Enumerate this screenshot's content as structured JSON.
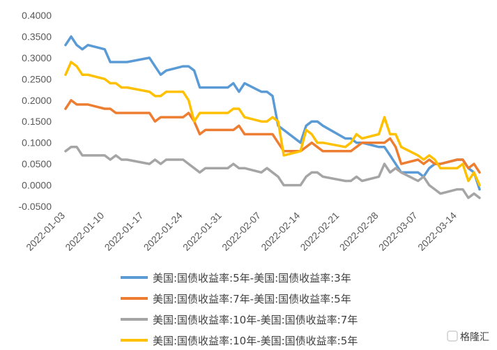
{
  "chart_data": {
    "type": "line",
    "title": "",
    "xlabel": "",
    "ylabel": "",
    "ylim": [
      -0.05,
      0.4
    ],
    "yticks": [
      "0.4000",
      "0.3500",
      "0.3000",
      "0.2500",
      "0.2000",
      "0.1500",
      "0.1000",
      "0.0500",
      "0.0000",
      "-0.0500"
    ],
    "xticks": [
      "2022-01-03",
      "2022-01-10",
      "2022-01-17",
      "2022-01-24",
      "2022-01-31",
      "2022-02-07",
      "2022-02-14",
      "2022-02-21",
      "2022-02-28",
      "2022-03-07",
      "2022-03-14"
    ],
    "grid": false,
    "legend_position": "bottom",
    "x": [
      "2022-01-03",
      "2022-01-04",
      "2022-01-05",
      "2022-01-06",
      "2022-01-07",
      "2022-01-10",
      "2022-01-11",
      "2022-01-12",
      "2022-01-13",
      "2022-01-14",
      "2022-01-18",
      "2022-01-19",
      "2022-01-20",
      "2022-01-21",
      "2022-01-24",
      "2022-01-25",
      "2022-01-26",
      "2022-01-27",
      "2022-01-28",
      "2022-01-31",
      "2022-02-01",
      "2022-02-02",
      "2022-02-03",
      "2022-02-04",
      "2022-02-07",
      "2022-02-08",
      "2022-02-09",
      "2022-02-10",
      "2022-02-11",
      "2022-02-14",
      "2022-02-15",
      "2022-02-16",
      "2022-02-17",
      "2022-02-18",
      "2022-02-22",
      "2022-02-23",
      "2022-02-24",
      "2022-02-25",
      "2022-02-28",
      "2022-03-01",
      "2022-03-02",
      "2022-03-03",
      "2022-03-04",
      "2022-03-07",
      "2022-03-08",
      "2022-03-09",
      "2022-03-10",
      "2022-03-11",
      "2022-03-14",
      "2022-03-15",
      "2022-03-16",
      "2022-03-17",
      "2022-03-18"
    ],
    "series": [
      {
        "name": "美国:国债收益率:5年-美国:国债收益率:3年",
        "color": "#5B9BD5",
        "values": [
          0.33,
          0.35,
          0.33,
          0.32,
          0.33,
          0.32,
          0.29,
          0.29,
          0.29,
          0.29,
          0.3,
          0.28,
          0.26,
          0.27,
          0.28,
          0.28,
          0.27,
          0.23,
          0.23,
          0.23,
          0.23,
          0.24,
          0.22,
          0.24,
          0.22,
          0.22,
          0.21,
          0.14,
          0.13,
          0.1,
          0.14,
          0.15,
          0.15,
          0.14,
          0.11,
          0.11,
          0.1,
          0.1,
          0.09,
          0.09,
          0.07,
          0.05,
          0.03,
          0.03,
          0.02,
          0.04,
          0.05,
          0.05,
          0.06,
          0.06,
          0.04,
          0.03,
          -0.01
        ]
      },
      {
        "name": "美国:国债收益率:7年-美国:国债收益率:5年",
        "color": "#ED7D31",
        "values": [
          0.18,
          0.2,
          0.19,
          0.19,
          0.19,
          0.18,
          0.18,
          0.17,
          0.17,
          0.17,
          0.17,
          0.15,
          0.16,
          0.16,
          0.16,
          0.17,
          0.15,
          0.12,
          0.13,
          0.13,
          0.13,
          0.13,
          0.14,
          0.12,
          0.12,
          0.12,
          0.12,
          0.1,
          0.08,
          0.08,
          0.09,
          0.1,
          0.09,
          0.08,
          0.08,
          0.08,
          0.09,
          0.1,
          0.1,
          0.1,
          0.11,
          0.09,
          0.05,
          0.06,
          0.05,
          0.06,
          0.05,
          0.05,
          0.06,
          0.06,
          0.04,
          0.05,
          0.03
        ]
      },
      {
        "name": "美国:国债收益率:10年-美国:国债收益率:7年",
        "color": "#A5A5A5",
        "values": [
          0.08,
          0.09,
          0.09,
          0.07,
          0.07,
          0.07,
          0.06,
          0.07,
          0.06,
          0.06,
          0.05,
          0.06,
          0.05,
          0.06,
          0.06,
          0.05,
          0.04,
          0.03,
          0.04,
          0.04,
          0.04,
          0.05,
          0.04,
          0.04,
          0.03,
          0.04,
          0.03,
          0.02,
          0.0,
          0.0,
          0.02,
          0.03,
          0.03,
          0.02,
          0.01,
          0.01,
          0.02,
          0.01,
          0.02,
          0.05,
          0.03,
          0.04,
          0.03,
          0.01,
          0.02,
          0.0,
          -0.01,
          -0.02,
          -0.01,
          -0.01,
          -0.03,
          -0.02,
          -0.03
        ]
      },
      {
        "name": "美国:国债收益率:10年-美国:国债收益率:5年",
        "color": "#FFC000",
        "values": [
          0.26,
          0.29,
          0.28,
          0.26,
          0.26,
          0.25,
          0.24,
          0.24,
          0.23,
          0.23,
          0.22,
          0.21,
          0.21,
          0.22,
          0.22,
          0.2,
          0.15,
          0.17,
          0.17,
          0.17,
          0.17,
          0.18,
          0.18,
          0.16,
          0.15,
          0.15,
          0.16,
          0.15,
          0.07,
          0.08,
          0.13,
          0.12,
          0.1,
          0.1,
          0.09,
          0.1,
          0.12,
          0.11,
          0.12,
          0.16,
          0.12,
          0.12,
          0.09,
          0.07,
          0.06,
          0.07,
          0.06,
          0.04,
          0.04,
          0.05,
          0.01,
          0.03,
          0.0
        ]
      }
    ]
  },
  "watermark": {
    "text": "格隆汇"
  }
}
